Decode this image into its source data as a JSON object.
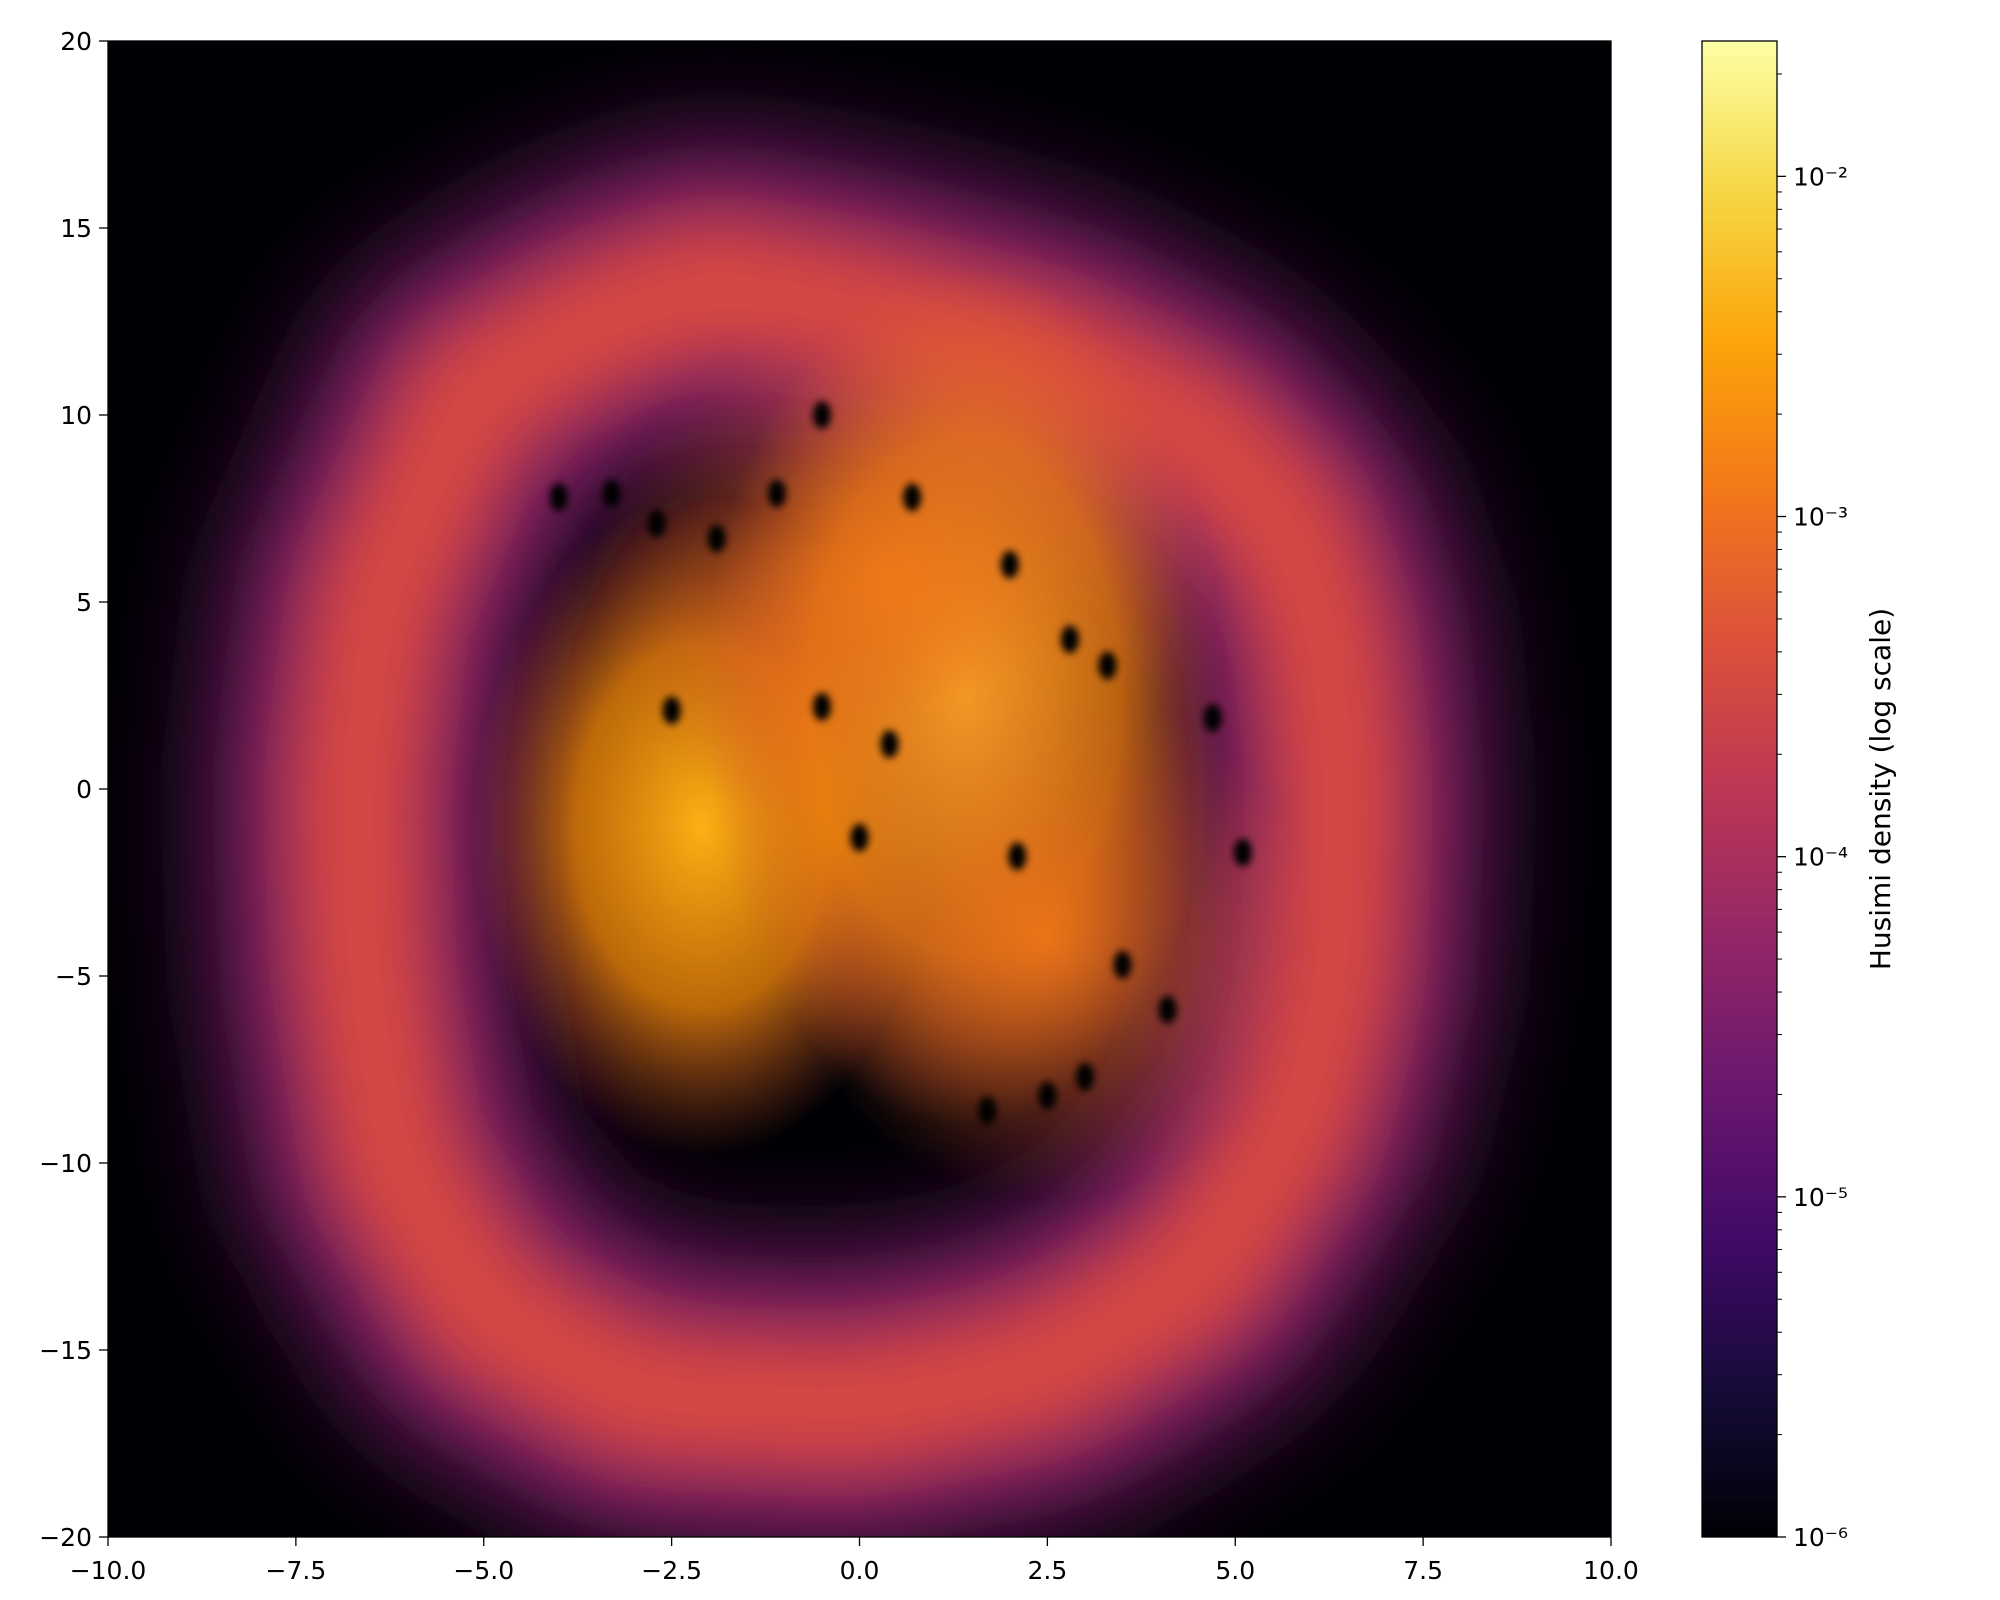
{
  "chart_data": {
    "type": "heatmap",
    "title": "",
    "xlabel": "",
    "ylabel": "",
    "xlim": [
      -10,
      10
    ],
    "ylim": [
      -20,
      20
    ],
    "x_ticks": [
      "−10.0",
      "−7.5",
      "−5.0",
      "−2.5",
      "0.0",
      "2.5",
      "5.0",
      "7.5",
      "10.0"
    ],
    "x_tick_values": [
      -10,
      -7.5,
      -5,
      -2.5,
      0,
      2.5,
      5,
      7.5,
      10
    ],
    "y_ticks": [
      "−20",
      "−15",
      "−10",
      "−5",
      "0",
      "5",
      "10",
      "15",
      "20"
    ],
    "y_tick_values": [
      -20,
      -15,
      -10,
      -5,
      0,
      5,
      10,
      15,
      20
    ],
    "colormap": "inferno",
    "background_color": "#000004",
    "colorbar": {
      "label": "Husimi density (log scale)",
      "scale": "log",
      "range": [
        1e-06,
        0.025
      ],
      "tick_labels": [
        "10⁻⁶",
        "10⁻⁵",
        "10⁻⁴",
        "10⁻³",
        "10⁻²"
      ],
      "tick_values": [
        1e-06,
        1e-05,
        0.0001,
        0.001,
        0.01
      ]
    },
    "features": {
      "outer_band": [
        [
          -3.5,
          12.5
        ],
        [
          -5.2,
          10.5
        ],
        [
          -6.4,
          5
        ],
        [
          -6.7,
          0
        ],
        [
          -6.6,
          -5
        ],
        [
          -6.2,
          -10
        ],
        [
          -5,
          -14
        ],
        [
          -3,
          -16.2
        ],
        [
          0,
          -16.5
        ],
        [
          2.5,
          -15.5
        ],
        [
          4.5,
          -13
        ],
        [
          5.8,
          -9
        ],
        [
          6.3,
          -5
        ],
        [
          6.4,
          0
        ],
        [
          6.2,
          4
        ],
        [
          5.7,
          7
        ],
        [
          4.5,
          9.5
        ],
        [
          2.5,
          11.5
        ],
        [
          0,
          12.8
        ],
        [
          -2,
          13.5
        ],
        [
          -3.5,
          12.5
        ]
      ],
      "peaks": [
        {
          "x": -2.1,
          "y": -1.0,
          "density": 0.008
        },
        {
          "x": 1.4,
          "y": 2.5,
          "density": 0.01
        },
        {
          "x": 0.4,
          "y": 5.5,
          "density": 0.004
        },
        {
          "x": 2.5,
          "y": -4.0,
          "density": 0.0015
        }
      ],
      "zeros": [
        {
          "x": -0.5,
          "y": 10.0
        },
        {
          "x": -4.0,
          "y": 7.8
        },
        {
          "x": -3.3,
          "y": 7.9
        },
        {
          "x": -2.7,
          "y": 7.1
        },
        {
          "x": -1.9,
          "y": 6.7
        },
        {
          "x": -1.1,
          "y": 7.9
        },
        {
          "x": 0.7,
          "y": 7.8
        },
        {
          "x": 2.0,
          "y": 6.0
        },
        {
          "x": 2.8,
          "y": 4.0
        },
        {
          "x": 3.3,
          "y": 3.3
        },
        {
          "x": 4.7,
          "y": 1.9
        },
        {
          "x": 5.1,
          "y": -1.7
        },
        {
          "x": -2.5,
          "y": 2.1
        },
        {
          "x": -0.5,
          "y": 2.2
        },
        {
          "x": 0.4,
          "y": 1.2
        },
        {
          "x": 0.0,
          "y": -1.3
        },
        {
          "x": 2.1,
          "y": -1.8
        },
        {
          "x": 3.5,
          "y": -4.7
        },
        {
          "x": 4.1,
          "y": -5.9
        },
        {
          "x": 3.0,
          "y": -7.7
        },
        {
          "x": 2.5,
          "y": -8.2
        },
        {
          "x": 1.7,
          "y": -8.6
        }
      ]
    }
  }
}
